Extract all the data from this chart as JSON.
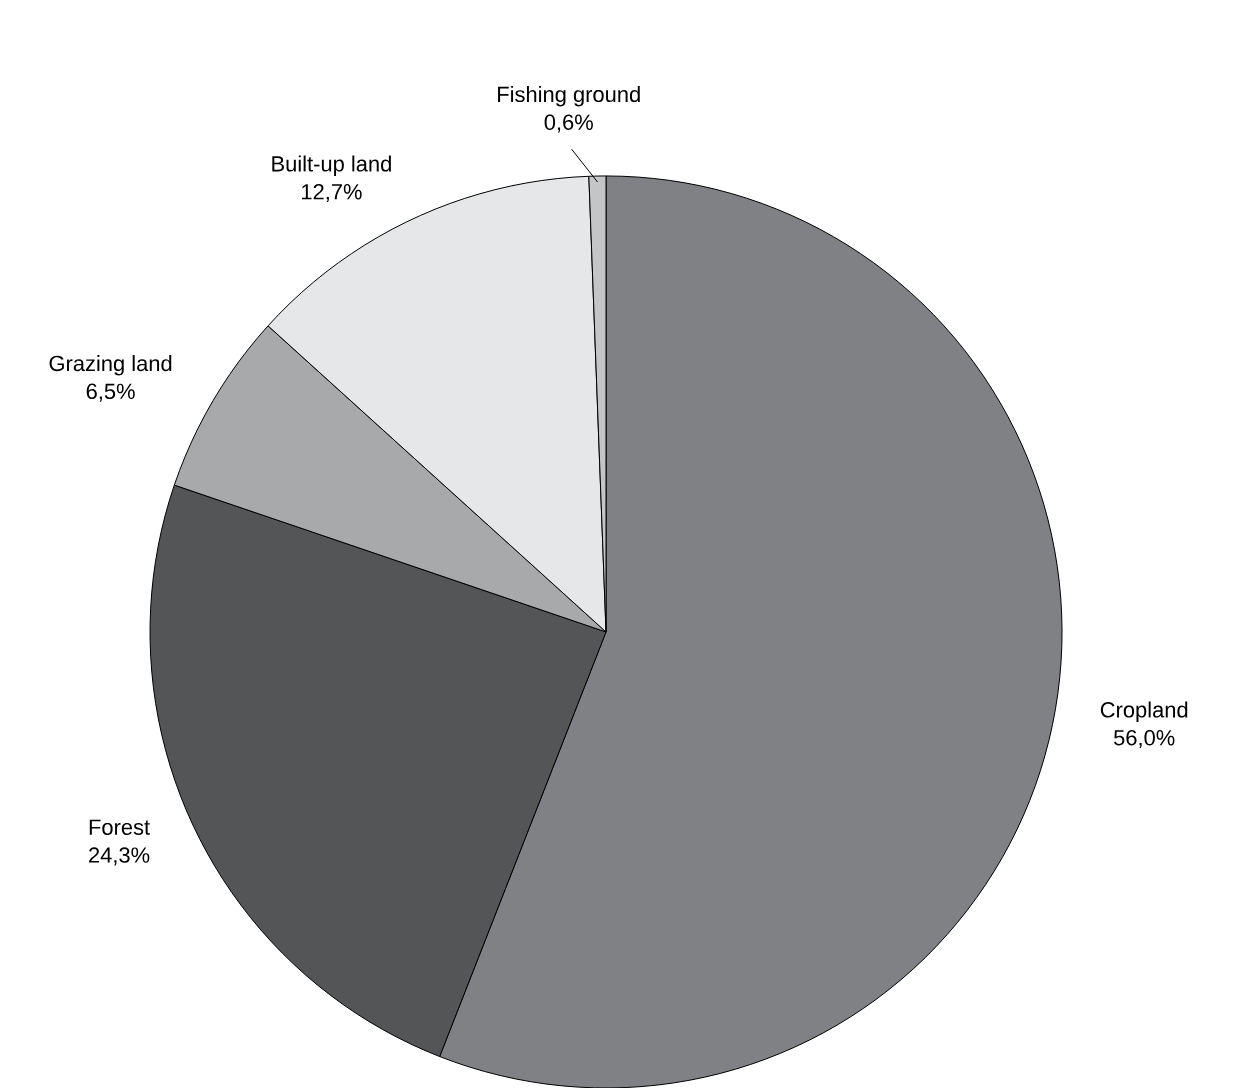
{
  "chart_data": {
    "type": "pie",
    "categories": [
      "Cropland",
      "Forest",
      "Grazing land",
      "Built-up land",
      "Fishing ground"
    ],
    "values": [
      56.0,
      24.3,
      6.5,
      12.7,
      0.6
    ],
    "value_labels": [
      "56,0%",
      "24,3%",
      "6,5%",
      "12,7%",
      "0,6%"
    ],
    "colors": [
      "#808184",
      "#545557",
      "#a8a9ab",
      "#e6e7e9",
      "#c4c5c7"
    ]
  }
}
